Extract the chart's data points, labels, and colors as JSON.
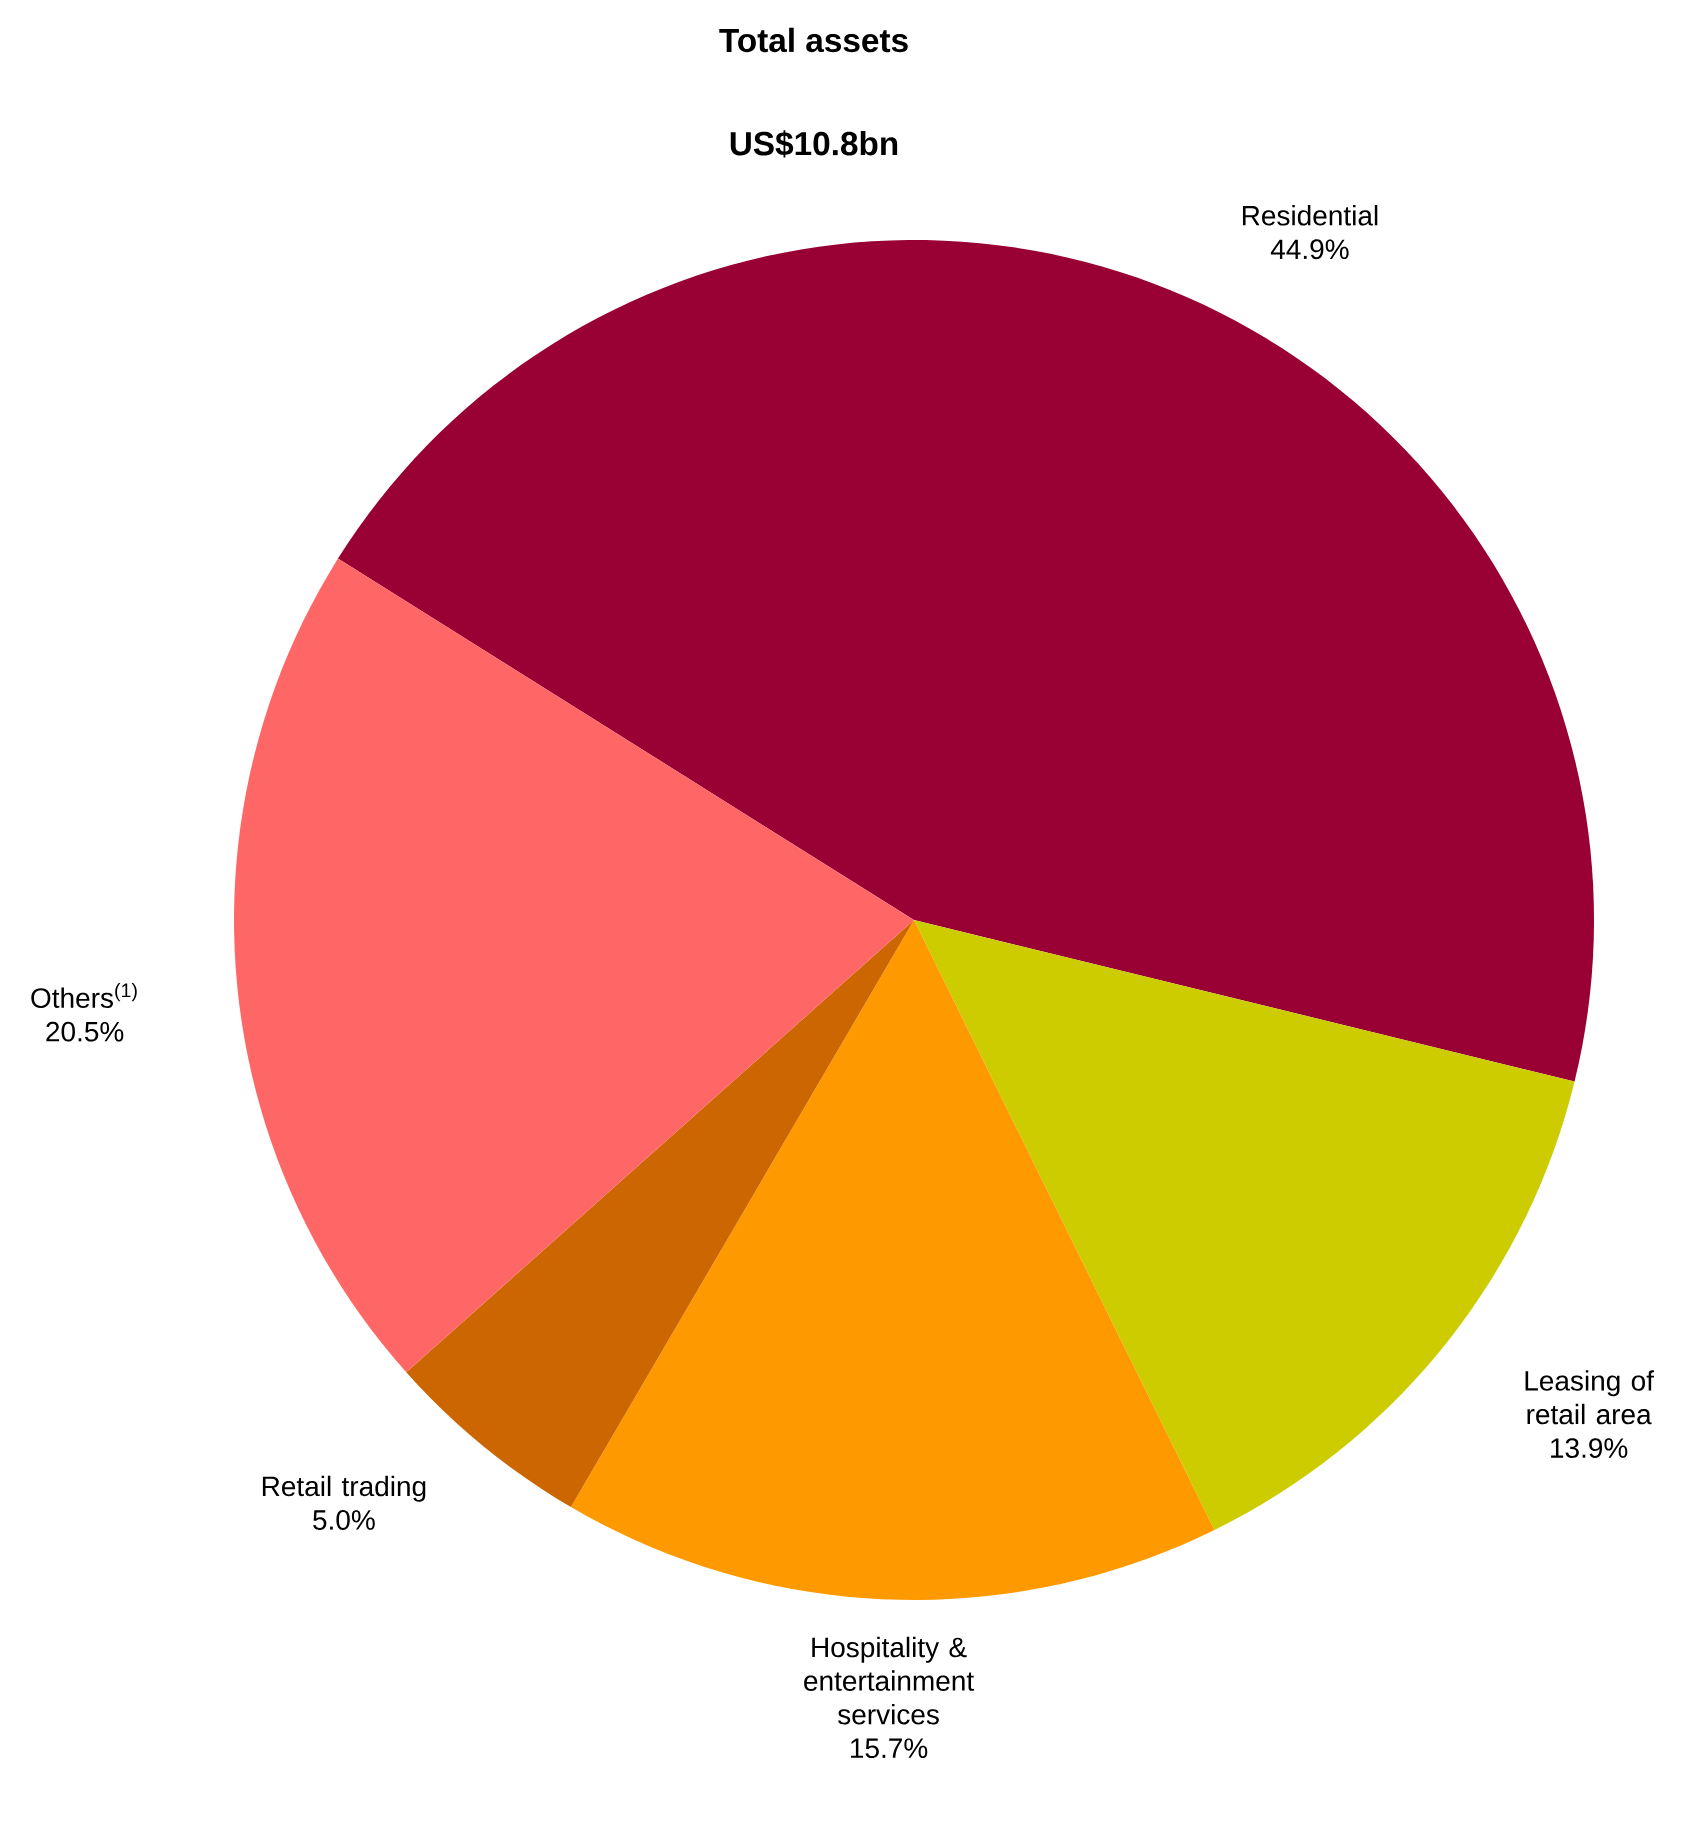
{
  "chart_data": {
    "type": "pie",
    "title": "Total assets",
    "subtitle": "US$10.8bn",
    "categories": [
      "Residential",
      "Leasing of retail area",
      "Hospitality & entertainment services",
      "Retail trading",
      "Others$^{(1)}$"
    ],
    "values": [
      44.9,
      13.9,
      15.7,
      5.0,
      20.5
    ],
    "value_labels": [
      "44.9%",
      "13.9%",
      "15.7%",
      "5.0%",
      "20.5%"
    ],
    "colors": [
      "#990033",
      "#cccc00",
      "#ff9900",
      "#cc6600",
      "#ff6666"
    ]
  }
}
